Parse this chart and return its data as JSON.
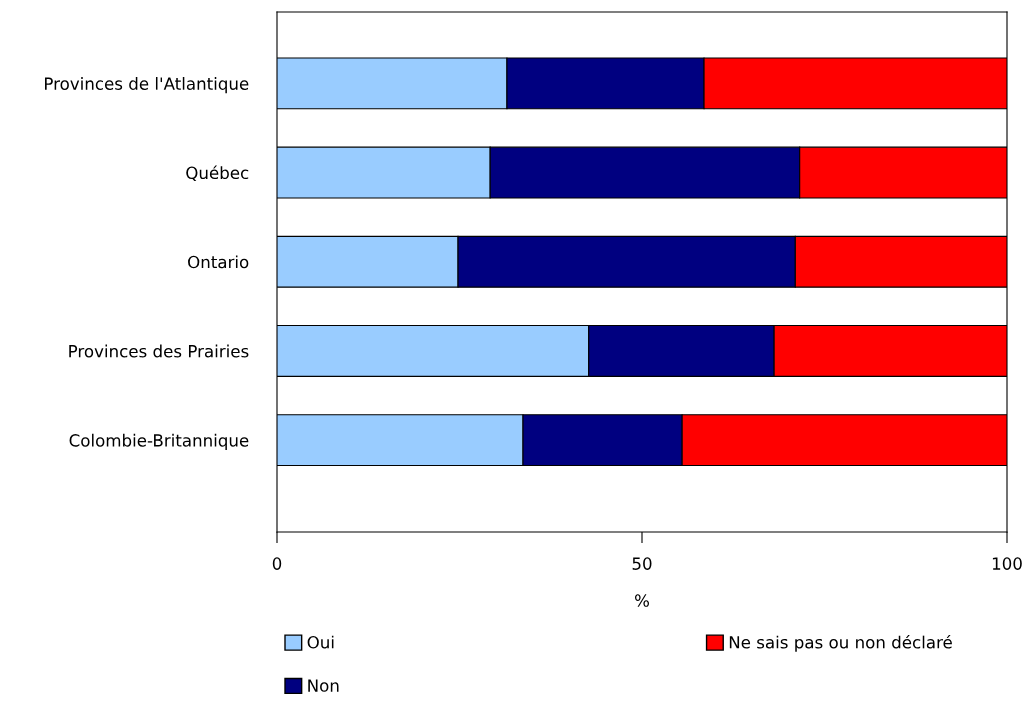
{
  "chart_data": {
    "type": "bar",
    "orientation": "horizontal",
    "stacked": true,
    "xlabel": "%",
    "categories": [
      "Provinces de l'Atlantique",
      "Québec",
      "Ontario",
      "Provinces des Prairies",
      "Colombie-Britannique"
    ],
    "series": [
      {
        "name": "Oui",
        "color": "#99ccff",
        "values": [
          31.5,
          29.2,
          24.8,
          42.7,
          33.7
        ]
      },
      {
        "name": "Non",
        "color": "#000080",
        "values": [
          27.0,
          42.4,
          46.2,
          25.4,
          21.8
        ]
      },
      {
        "name": "Ne sais pas ou non déclaré",
        "color": "#ff0000",
        "values": [
          41.5,
          28.4,
          29.0,
          31.9,
          44.5
        ]
      }
    ],
    "xlim": [
      0,
      100
    ],
    "xticks": [
      0,
      50,
      100
    ],
    "grid": false,
    "legend": "bottom"
  }
}
